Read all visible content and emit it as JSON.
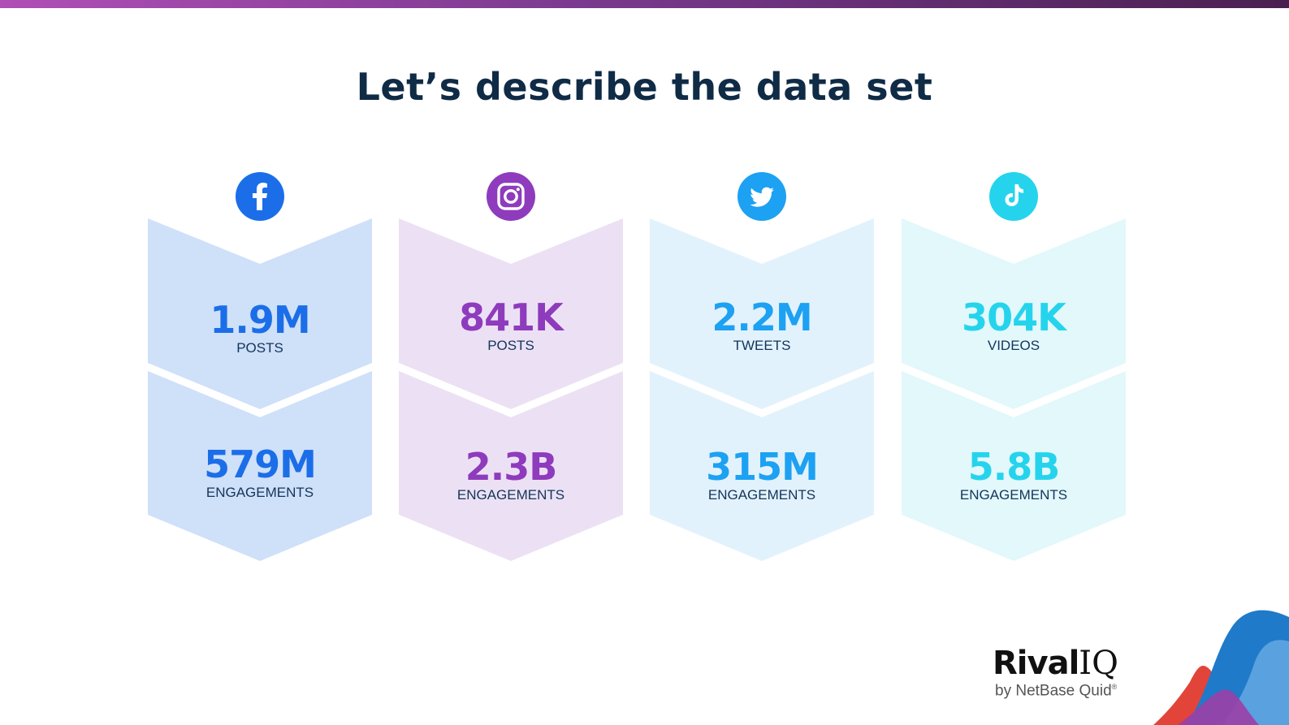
{
  "slide": {
    "title": "Let’s describe the data set"
  },
  "platforms": [
    {
      "name": "Facebook",
      "icon": "facebook-icon",
      "color": "#1b6ee8",
      "tint": "#cfe0f9",
      "top_value": "1.9M",
      "top_label": "POSTS",
      "bottom_value": "579M",
      "bottom_label": "ENGAGEMENTS"
    },
    {
      "name": "Instagram",
      "icon": "instagram-icon",
      "color": "#8e3bbd",
      "tint": "#ece1f4",
      "top_value": "841K",
      "top_label": "POSTS",
      "bottom_value": "2.3B",
      "bottom_label": "ENGAGEMENTS"
    },
    {
      "name": "Twitter",
      "icon": "twitter-icon",
      "color": "#1da1f2",
      "tint": "#e2f2fc",
      "top_value": "2.2M",
      "top_label": "TWEETS",
      "bottom_value": "315M",
      "bottom_label": "ENGAGEMENTS"
    },
    {
      "name": "TikTok",
      "icon": "tiktok-icon",
      "color": "#25d4ec",
      "tint": "#e2f8fb",
      "top_value": "304K",
      "top_label": "VIDEOS",
      "bottom_value": "5.8B",
      "bottom_label": "ENGAGEMENTS"
    }
  ],
  "brand": {
    "name_main": "Rival",
    "name_accent": "IQ",
    "byline": "by NetBase Quid",
    "registered": "®"
  }
}
